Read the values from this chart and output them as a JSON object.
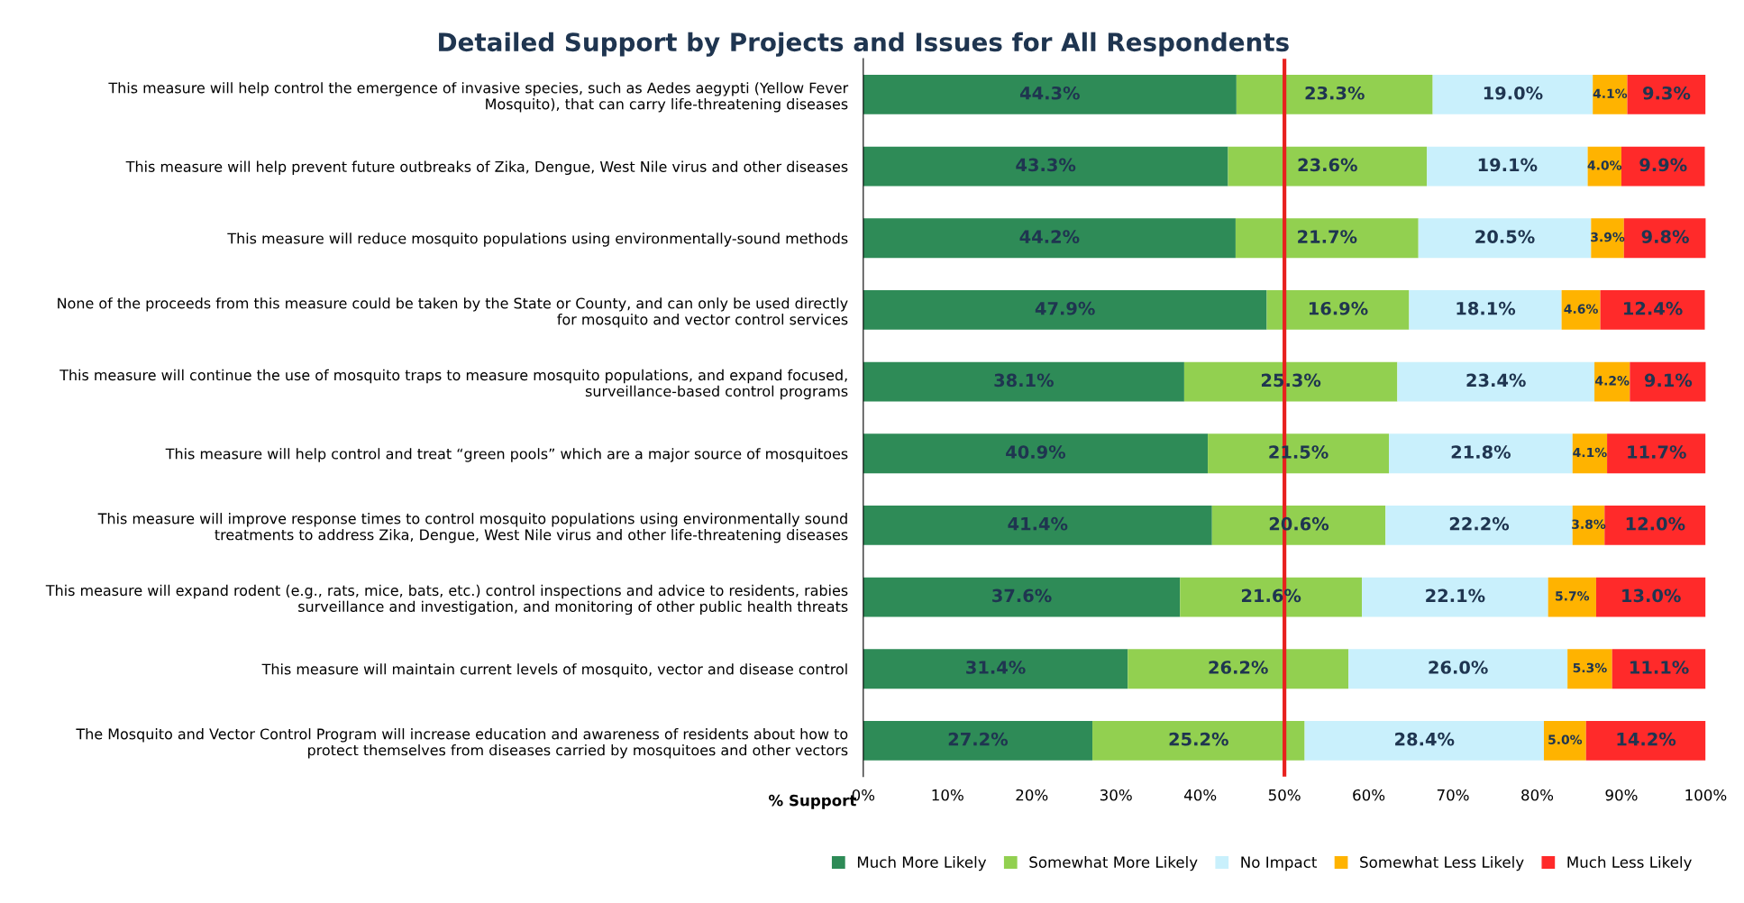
{
  "chart_data": {
    "type": "bar",
    "orientation": "horizontal",
    "stacked": true,
    "title": "Detailed Support by Projects and Issues for All Respondents",
    "xlabel": "% Support",
    "categories": [
      "This measure will help control the emergence of invasive species, such as Aedes aegypti (Yellow Fever\nMosquito), that can carry life-threatening diseases",
      "This measure will help prevent future outbreaks of Zika, Dengue, West Nile virus and other diseases",
      "This measure will reduce mosquito populations using environmentally-sound methods",
      "None of the proceeds from this measure could be taken by the State or County, and can only be used directly\nfor mosquito and vector control services",
      "This measure will continue the use of mosquito traps to measure mosquito populations, and expand focused,\nsurveillance-based control programs",
      "This measure will help control and treat “green pools” which are a major source of mosquitoes",
      "This measure will improve response times to control mosquito populations using environmentally sound\ntreatments to address Zika, Dengue, West Nile virus and other life-threatening diseases",
      "This measure will expand rodent (e.g., rats, mice, bats, etc.) control inspections and advice to residents, rabies\nsurveillance and investigation, and monitoring of other public health threats",
      "This measure will maintain current levels of mosquito, vector and disease control",
      "The Mosquito and Vector Control Program will increase education and awareness of residents about how to\nprotect themselves from diseases carried by mosquitoes and other vectors"
    ],
    "series": [
      {
        "name": "Much More Likely",
        "color": "#2e8b57",
        "values": [
          44.3,
          43.3,
          44.2,
          47.9,
          38.1,
          40.9,
          41.4,
          37.6,
          31.4,
          27.2
        ],
        "value_labels": [
          "44.3%",
          "43.3%",
          "44.2%",
          "47.9%",
          "38.1%",
          "40.9%",
          "41.4%",
          "37.6%",
          "31.4%",
          "27.2%"
        ]
      },
      {
        "name": "Somewhat More Likely",
        "color": "#92d050",
        "values": [
          23.3,
          23.6,
          21.7,
          16.9,
          25.3,
          21.5,
          20.6,
          21.6,
          26.2,
          25.2
        ],
        "value_labels": [
          "23.3%",
          "23.6%",
          "21.7%",
          "16.9%",
          "25.3%",
          "21.5%",
          "20.6%",
          "21.6%",
          "26.2%",
          "25.2%"
        ]
      },
      {
        "name": "No Impact",
        "color": "#c9f0fc",
        "values": [
          19.0,
          19.1,
          20.5,
          18.1,
          23.4,
          21.8,
          22.2,
          22.1,
          26.0,
          28.4
        ],
        "value_labels": [
          "19.0%",
          "19.1%",
          "20.5%",
          "18.1%",
          "23.4%",
          "21.8%",
          "22.2%",
          "22.1%",
          "26.0%",
          "28.4%"
        ]
      },
      {
        "name": "Somewhat Less Likely",
        "color": "#ffb300",
        "values": [
          4.1,
          4.0,
          3.9,
          4.6,
          4.2,
          4.1,
          3.8,
          5.7,
          5.3,
          5.0
        ],
        "value_labels": [
          "4.1%",
          "4.0%",
          "3.9%",
          "4.6%",
          "4.2%",
          "4.1%",
          "3.8%",
          "5.7%",
          "5.3%",
          "5.0%"
        ]
      },
      {
        "name": "Much Less Likely",
        "color": "#ff2a2a",
        "values": [
          9.3,
          9.9,
          9.8,
          12.4,
          9.1,
          11.7,
          12.0,
          13.0,
          11.1,
          14.2
        ],
        "value_labels": [
          "9.3%",
          "9.9%",
          "9.8%",
          "12.4%",
          "9.1%",
          "11.7%",
          "12.0%",
          "13.0%",
          "11.1%",
          "14.2%"
        ]
      }
    ],
    "xlim": [
      0,
      100
    ],
    "xticks": [
      {
        "value": 0,
        "label": "0%"
      },
      {
        "value": 10,
        "label": "10%"
      },
      {
        "value": 20,
        "label": "20%"
      },
      {
        "value": 30,
        "label": "30%"
      },
      {
        "value": 40,
        "label": "40%"
      },
      {
        "value": 50,
        "label": "50%"
      },
      {
        "value": 60,
        "label": "60%"
      },
      {
        "value": 70,
        "label": "70%"
      },
      {
        "value": 80,
        "label": "80%"
      },
      {
        "value": 90,
        "label": "90%"
      },
      {
        "value": 100,
        "label": "100%"
      }
    ],
    "ref_lines": [
      {
        "axis": "x",
        "value": 50,
        "color": "#e8201e"
      }
    ],
    "legend": "bottom right",
    "grid": false
  }
}
